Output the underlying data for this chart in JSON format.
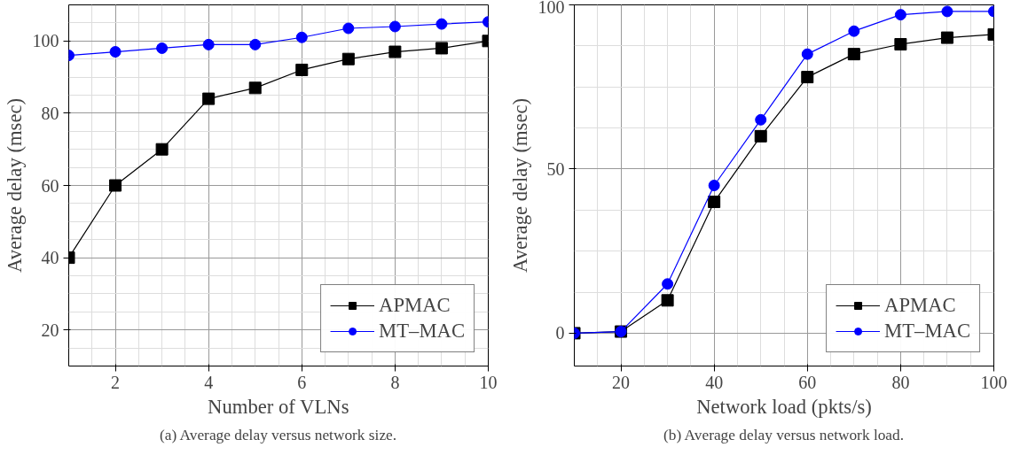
{
  "chart_data": [
    {
      "type": "line",
      "xlabel": "Number of VLNs",
      "ylabel": "Average delay (msec)",
      "x": [
        1,
        2,
        3,
        4,
        5,
        6,
        7,
        8,
        9,
        10
      ],
      "xlim": [
        1,
        10
      ],
      "xticks": [
        2,
        4,
        6,
        8,
        10
      ],
      "ylim": [
        10,
        110
      ],
      "yticks": [
        20,
        40,
        60,
        80,
        100
      ],
      "grid": true,
      "legend": "bottom right",
      "series": [
        {
          "name": "APMAC",
          "color": "#000000",
          "marker": "square",
          "values": [
            40,
            60,
            70,
            84,
            87,
            92,
            95,
            97,
            98,
            100
          ]
        },
        {
          "name": "MT–MAC",
          "color": "#0000ff",
          "marker": "circle",
          "values": [
            96,
            97,
            98,
            99,
            99,
            101,
            103.5,
            104,
            104.7,
            105.3
          ]
        }
      ],
      "annotations": [
        "(a) Average delay versus network size."
      ]
    },
    {
      "type": "line",
      "xlabel": "Network load (pkts/s)",
      "ylabel": "Average delay (msec)",
      "x": [
        10,
        20,
        30,
        40,
        50,
        60,
        70,
        80,
        90,
        100
      ],
      "xlim": [
        10,
        100
      ],
      "xticks": [
        20,
        40,
        60,
        80,
        100
      ],
      "ylim": [
        -10,
        100
      ],
      "yticks": [
        0,
        50,
        100
      ],
      "grid": true,
      "legend": "bottom right",
      "series": [
        {
          "name": "APMAC",
          "color": "#000000",
          "marker": "square",
          "values": [
            0,
            0.5,
            10,
            40,
            60,
            78,
            85,
            88,
            90,
            91
          ]
        },
        {
          "name": "MT–MAC",
          "color": "#0000ff",
          "marker": "circle",
          "values": [
            0,
            0.5,
            15,
            45,
            65,
            85,
            92,
            97,
            98,
            98
          ]
        }
      ],
      "annotations": [
        "(b) Average delay versus network load."
      ]
    }
  ]
}
